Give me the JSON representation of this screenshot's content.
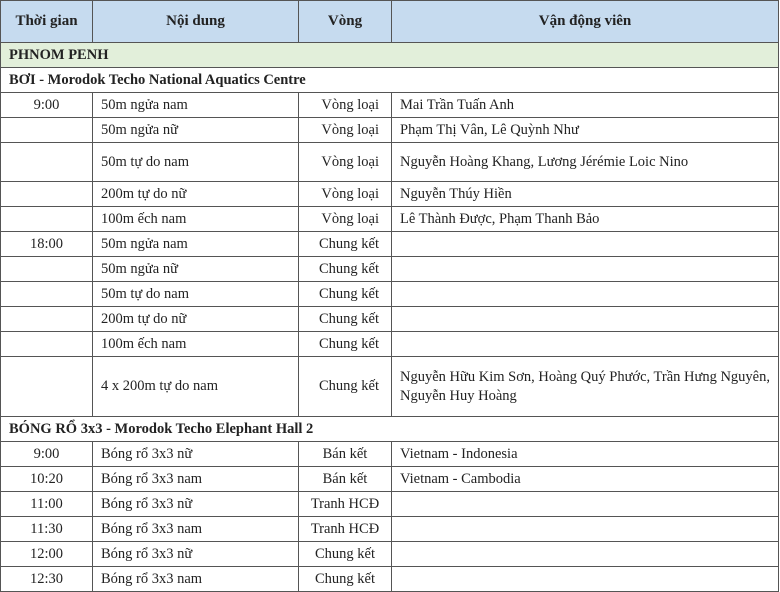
{
  "headers": [
    "Thời gian",
    "Nội dung",
    "Vòng",
    "Vận động viên"
  ],
  "city": "PHNOM PENH",
  "swimming": {
    "title": "BƠI - Morodok Techo National Aquatics Centre",
    "rows": [
      {
        "time": "9:00",
        "event": "50m ngửa nam",
        "round": "Vòng loại",
        "athletes": "Mai Trần Tuấn Anh"
      },
      {
        "time": "",
        "event": "50m ngửa nữ",
        "round": "Vòng loại",
        "athletes": "Phạm Thị Vân, Lê Quỳnh Như"
      },
      {
        "time": "",
        "event": "50m tự do nam",
        "round": "Vòng loại",
        "athletes": "Nguyễn Hoàng Khang, Lương Jérémie Loic Nino"
      },
      {
        "time": "",
        "event": "200m tự do nữ",
        "round": "Vòng loại",
        "athletes": "Nguyễn Thúy Hiền"
      },
      {
        "time": "",
        "event": "100m ếch nam",
        "round": "Vòng loại",
        "athletes": "Lê Thành Được, Phạm Thanh Bảo"
      },
      {
        "time": "18:00",
        "event": "50m ngửa nam",
        "round": "Chung kết",
        "athletes": ""
      },
      {
        "time": "",
        "event": "50m ngửa nữ",
        "round": "Chung kết",
        "athletes": ""
      },
      {
        "time": "",
        "event": "50m tự do nam",
        "round": "Chung kết",
        "athletes": ""
      },
      {
        "time": "",
        "event": "200m tự do nữ",
        "round": "Chung kết",
        "athletes": ""
      },
      {
        "time": "",
        "event": "100m ếch nam",
        "round": "Chung kết",
        "athletes": ""
      },
      {
        "time": "",
        "event": "4 x 200m tự do nam",
        "round": "Chung kết",
        "athletes": "Nguyễn Hữu Kim Sơn, Hoàng Quý Phước, Trần Hưng Nguyên, Nguyễn Huy Hoàng"
      }
    ]
  },
  "basketball": {
    "title": "BÓNG RỔ 3x3  - Morodok Techo Elephant Hall 2",
    "rows": [
      {
        "time": "9:00",
        "event": "Bóng rổ 3x3 nữ",
        "round": "Bán kết",
        "athletes": "Vietnam - Indonesia"
      },
      {
        "time": "10:20",
        "event": "Bóng rổ 3x3 nam",
        "round": "Bán kết",
        "athletes": "Vietnam - Cambodia"
      },
      {
        "time": "11:00",
        "event": "Bóng rổ 3x3 nữ",
        "round": "Tranh HCĐ",
        "athletes": ""
      },
      {
        "time": "11:30",
        "event": "Bóng rổ 3x3 nam",
        "round": "Tranh HCĐ",
        "athletes": ""
      },
      {
        "time": "12:00",
        "event": "Bóng rổ 3x3 nữ",
        "round": "Chung kết",
        "athletes": ""
      },
      {
        "time": "12:30",
        "event": "Bóng rổ 3x3 nam",
        "round": "Chung kết",
        "athletes": ""
      }
    ]
  }
}
